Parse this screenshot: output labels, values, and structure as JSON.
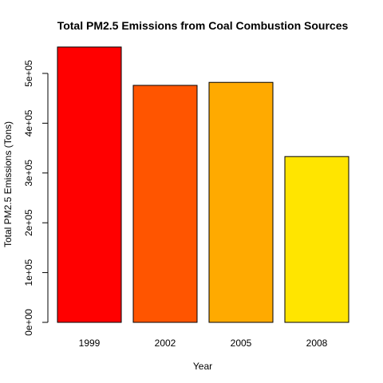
{
  "chart_data": {
    "type": "bar",
    "title": "Total PM2.5 Emissions from Coal Combustion Sources",
    "xlabel": "Year",
    "ylabel": "Total PM2.5 Emissions (Tons)",
    "categories": [
      "1999",
      "2002",
      "2005",
      "2008"
    ],
    "values": [
      553000,
      476000,
      482000,
      333000
    ],
    "colors": [
      "#FF0000",
      "#FF5500",
      "#FFAA00",
      "#FFE500"
    ],
    "ylim": [
      0,
      553000
    ],
    "yticks": [
      0,
      100000,
      200000,
      300000,
      400000,
      500000
    ],
    "ytick_labels": [
      "0e+00",
      "1e+05",
      "2e+05",
      "3e+05",
      "4e+05",
      "5e+05"
    ],
    "grid": false,
    "legend": "none"
  }
}
